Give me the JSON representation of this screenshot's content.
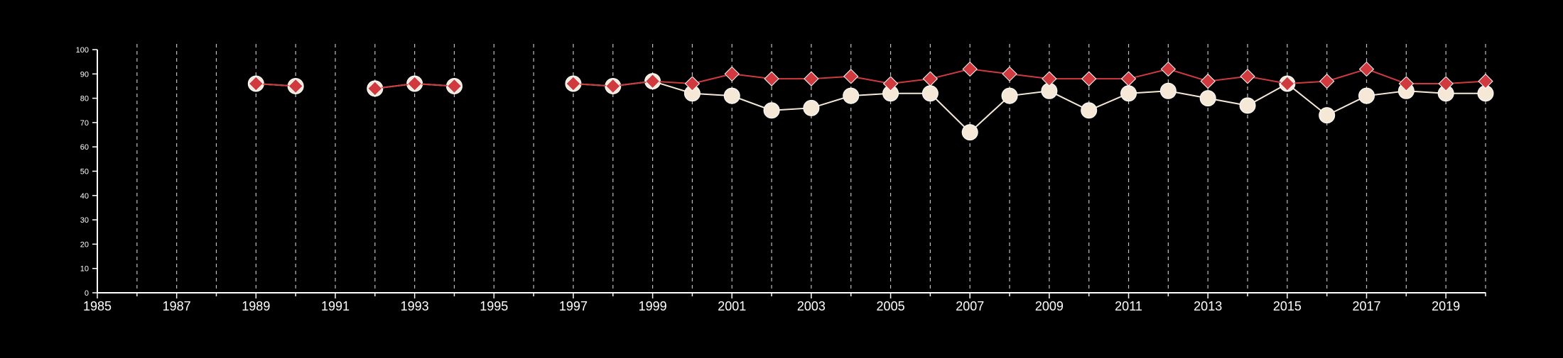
{
  "chart_data": {
    "type": "line",
    "title": "",
    "xlabel": "",
    "ylabel": "",
    "xlim": [
      1985,
      2020
    ],
    "ylim": [
      0,
      100
    ],
    "x_ticks": [
      1985,
      1987,
      1989,
      1991,
      1993,
      1995,
      1997,
      1999,
      2001,
      2003,
      2005,
      2007,
      2009,
      2011,
      2013,
      2015,
      2017,
      2019
    ],
    "y_ticks": [
      0,
      10,
      20,
      30,
      40,
      50,
      60,
      70,
      80,
      90,
      100
    ],
    "grid": "vertical dashed lines at each year",
    "legend": "none",
    "x": [
      1985,
      1986,
      1987,
      1988,
      1989,
      1990,
      1991,
      1992,
      1993,
      1994,
      1995,
      1996,
      1997,
      1998,
      1999,
      2000,
      2001,
      2002,
      2003,
      2004,
      2005,
      2006,
      2007,
      2008,
      2009,
      2010,
      2011,
      2012,
      2013,
      2014,
      2015,
      2016,
      2017,
      2018,
      2019,
      2020
    ],
    "series": [
      {
        "marker": "circle",
        "color": "#f5e8d6",
        "values": [
          null,
          null,
          null,
          null,
          86,
          85,
          null,
          84,
          86,
          85,
          null,
          null,
          86,
          85,
          87,
          82,
          81,
          75,
          76,
          81,
          82,
          82,
          66,
          81,
          83,
          75,
          82,
          83,
          80,
          77,
          86,
          73,
          81,
          83,
          82,
          82
        ]
      },
      {
        "marker": "diamond",
        "color": "#d03a3f",
        "values": [
          null,
          null,
          null,
          null,
          86,
          85,
          null,
          84,
          86,
          85,
          null,
          null,
          86,
          85,
          87,
          86,
          90,
          88,
          88,
          89,
          86,
          88,
          92,
          90,
          88,
          88,
          88,
          92,
          87,
          89,
          86,
          87,
          92,
          86,
          86,
          87
        ]
      }
    ]
  }
}
